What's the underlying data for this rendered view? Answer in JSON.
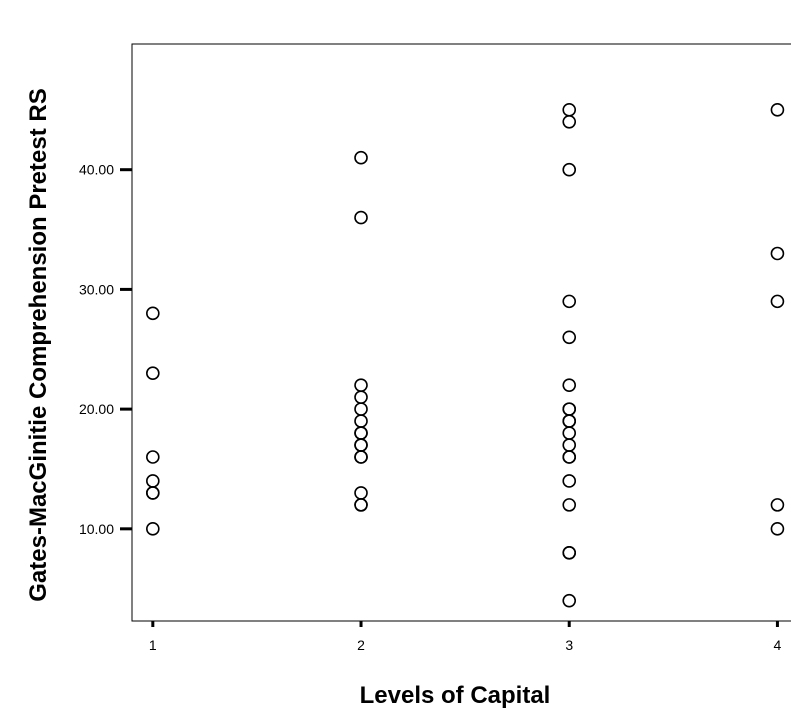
{
  "chart_data": {
    "type": "scatter",
    "title": "",
    "xlabel": "Levels of Capital",
    "ylabel": "Gates-MacGinitie Comprehension Pretest RS",
    "x_ticks": [
      1,
      2,
      3,
      4
    ],
    "x_tick_labels": [
      "1",
      "2",
      "3",
      "4"
    ],
    "y_ticks": [
      10,
      20,
      30,
      40
    ],
    "y_tick_labels": [
      "10.00",
      "20.00",
      "30.00",
      "40.00"
    ],
    "xlim": [
      0.9,
      4.07
    ],
    "ylim": [
      2.3,
      50.5
    ],
    "grid": false,
    "marker": "open-circle",
    "colors": {
      "marker_stroke": "#000000",
      "axis": "#000000",
      "background": "#ffffff"
    },
    "series": [
      {
        "points": [
          {
            "x": 1,
            "y": 28
          },
          {
            "x": 1,
            "y": 23
          },
          {
            "x": 1,
            "y": 16
          },
          {
            "x": 1,
            "y": 14
          },
          {
            "x": 1,
            "y": 13
          },
          {
            "x": 1,
            "y": 13
          },
          {
            "x": 1,
            "y": 10
          },
          {
            "x": 2,
            "y": 41
          },
          {
            "x": 2,
            "y": 36
          },
          {
            "x": 2,
            "y": 22
          },
          {
            "x": 2,
            "y": 21
          },
          {
            "x": 2,
            "y": 20
          },
          {
            "x": 2,
            "y": 19
          },
          {
            "x": 2,
            "y": 18
          },
          {
            "x": 2,
            "y": 18
          },
          {
            "x": 2,
            "y": 17
          },
          {
            "x": 2,
            "y": 17
          },
          {
            "x": 2,
            "y": 16
          },
          {
            "x": 2,
            "y": 16
          },
          {
            "x": 2,
            "y": 13
          },
          {
            "x": 2,
            "y": 12
          },
          {
            "x": 2,
            "y": 12
          },
          {
            "x": 3,
            "y": 45
          },
          {
            "x": 3,
            "y": 44
          },
          {
            "x": 3,
            "y": 40
          },
          {
            "x": 3,
            "y": 29
          },
          {
            "x": 3,
            "y": 26
          },
          {
            "x": 3,
            "y": 22
          },
          {
            "x": 3,
            "y": 20
          },
          {
            "x": 3,
            "y": 20
          },
          {
            "x": 3,
            "y": 19
          },
          {
            "x": 3,
            "y": 19
          },
          {
            "x": 3,
            "y": 18
          },
          {
            "x": 3,
            "y": 17
          },
          {
            "x": 3,
            "y": 16
          },
          {
            "x": 3,
            "y": 16
          },
          {
            "x": 3,
            "y": 14
          },
          {
            "x": 3,
            "y": 12
          },
          {
            "x": 3,
            "y": 8
          },
          {
            "x": 3,
            "y": 8
          },
          {
            "x": 3,
            "y": 4
          },
          {
            "x": 4,
            "y": 45
          },
          {
            "x": 4,
            "y": 33
          },
          {
            "x": 4,
            "y": 29
          },
          {
            "x": 4,
            "y": 12
          },
          {
            "x": 4,
            "y": 10
          }
        ]
      }
    ]
  }
}
